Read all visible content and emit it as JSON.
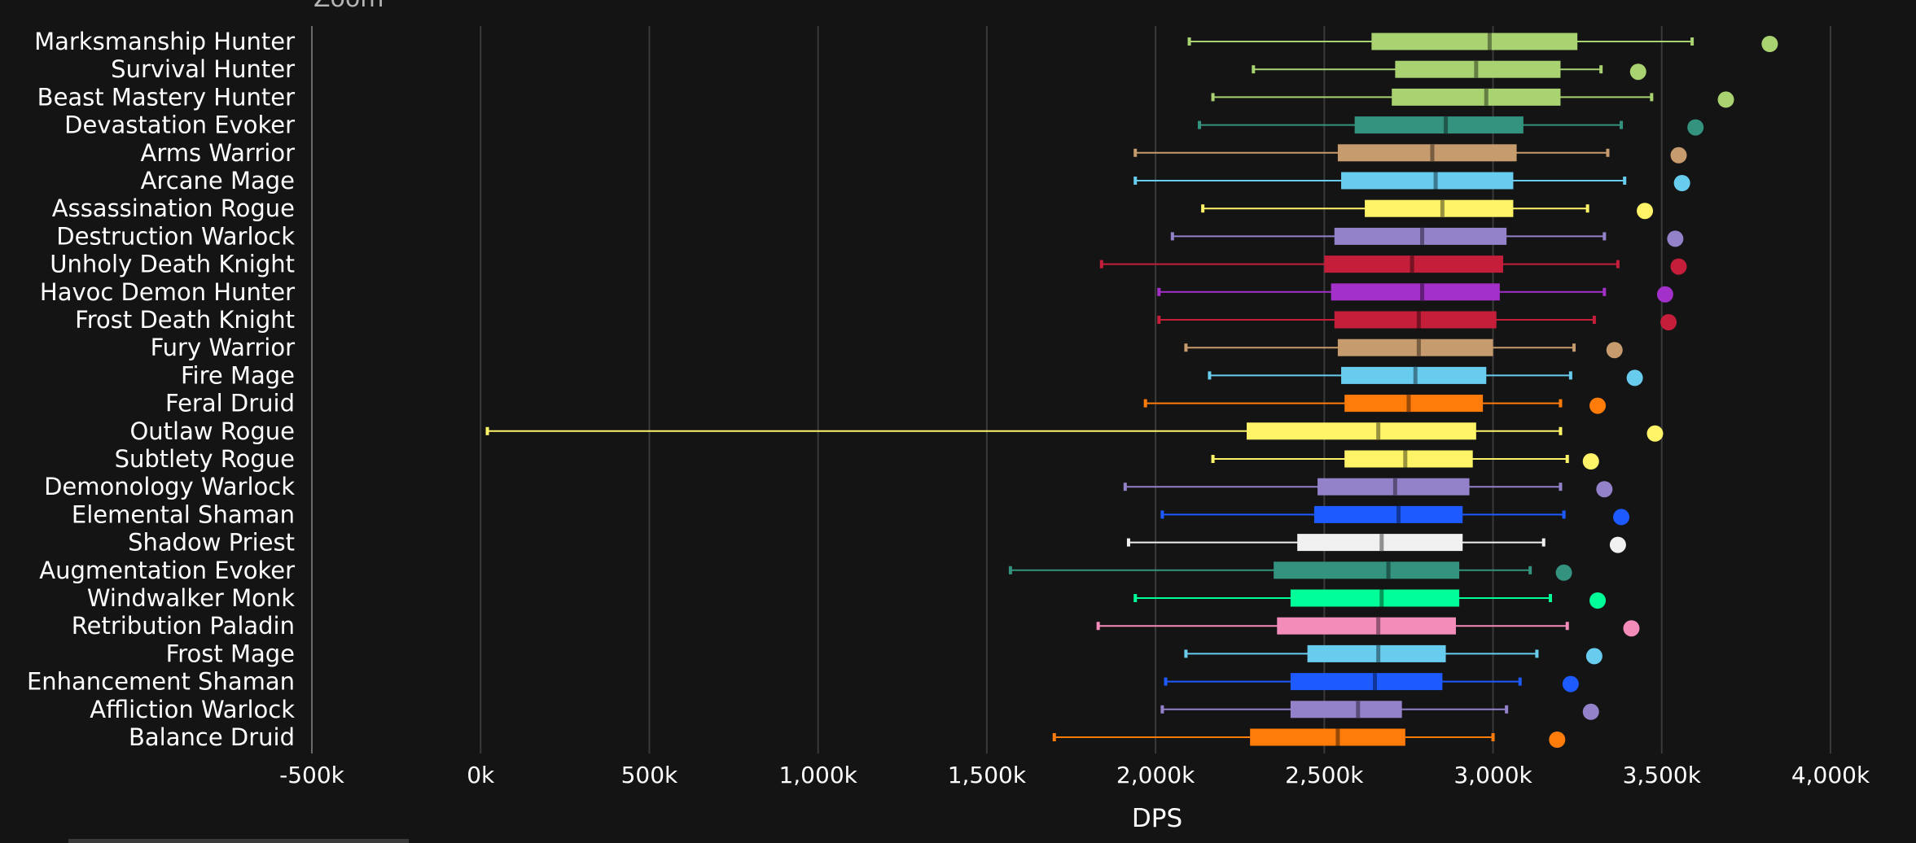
{
  "chart_data": {
    "type": "boxplot",
    "zoom_label": "Zoom",
    "xlabel": "DPS",
    "xlim": [
      -500000,
      4000000
    ],
    "x_ticks": [
      {
        "value": -500000,
        "label": "-500k"
      },
      {
        "value": 0,
        "label": "0k"
      },
      {
        "value": 500000,
        "label": "500k"
      },
      {
        "value": 1000000,
        "label": "1,000k"
      },
      {
        "value": 1500000,
        "label": "1,500k"
      },
      {
        "value": 2000000,
        "label": "2,000k"
      },
      {
        "value": 2500000,
        "label": "2,500k"
      },
      {
        "value": 3000000,
        "label": "3,000k"
      },
      {
        "value": 3500000,
        "label": "3,500k"
      },
      {
        "value": 4000000,
        "label": "4,000k"
      }
    ],
    "grid": true,
    "series": [
      {
        "name": "Marksmanship Hunter",
        "color": "#a9d271",
        "min": 2100000,
        "q1": 2640000,
        "median": 2990000,
        "q3": 3250000,
        "max": 3590000,
        "outlier": 3820000
      },
      {
        "name": "Survival Hunter",
        "color": "#a9d271",
        "min": 2290000,
        "q1": 2710000,
        "median": 2950000,
        "q3": 3200000,
        "max": 3320000,
        "outlier": 3430000
      },
      {
        "name": "Beast Mastery Hunter",
        "color": "#a9d271",
        "min": 2170000,
        "q1": 2700000,
        "median": 2980000,
        "q3": 3200000,
        "max": 3470000,
        "outlier": 3690000
      },
      {
        "name": "Devastation Evoker",
        "color": "#33937f",
        "min": 2130000,
        "q1": 2590000,
        "median": 2860000,
        "q3": 3090000,
        "max": 3380000,
        "outlier": 3600000
      },
      {
        "name": "Arms Warrior",
        "color": "#c69b6d",
        "min": 1940000,
        "q1": 2540000,
        "median": 2820000,
        "q3": 3070000,
        "max": 3340000,
        "outlier": 3550000
      },
      {
        "name": "Arcane Mage",
        "color": "#68ccef",
        "min": 1940000,
        "q1": 2550000,
        "median": 2830000,
        "q3": 3060000,
        "max": 3390000,
        "outlier": 3560000
      },
      {
        "name": "Assassination Rogue",
        "color": "#fff468",
        "min": 2140000,
        "q1": 2620000,
        "median": 2850000,
        "q3": 3060000,
        "max": 3280000,
        "outlier": 3450000
      },
      {
        "name": "Destruction Warlock",
        "color": "#9382c9",
        "min": 2050000,
        "q1": 2530000,
        "median": 2790000,
        "q3": 3040000,
        "max": 3330000,
        "outlier": 3540000
      },
      {
        "name": "Unholy Death Knight",
        "color": "#c41e3b",
        "min": 1840000,
        "q1": 2500000,
        "median": 2760000,
        "q3": 3030000,
        "max": 3370000,
        "outlier": 3550000
      },
      {
        "name": "Havoc Demon Hunter",
        "color": "#a330c9",
        "min": 2010000,
        "q1": 2520000,
        "median": 2790000,
        "q3": 3020000,
        "max": 3330000,
        "outlier": 3510000
      },
      {
        "name": "Frost Death Knight",
        "color": "#c41e3b",
        "min": 2010000,
        "q1": 2530000,
        "median": 2780000,
        "q3": 3010000,
        "max": 3300000,
        "outlier": 3520000
      },
      {
        "name": "Fury Warrior",
        "color": "#c69b6d",
        "min": 2090000,
        "q1": 2540000,
        "median": 2780000,
        "q3": 3000000,
        "max": 3240000,
        "outlier": 3360000
      },
      {
        "name": "Fire Mage",
        "color": "#68ccef",
        "min": 2160000,
        "q1": 2550000,
        "median": 2770000,
        "q3": 2980000,
        "max": 3230000,
        "outlier": 3420000
      },
      {
        "name": "Feral Druid",
        "color": "#ff7c0a",
        "min": 1970000,
        "q1": 2560000,
        "median": 2750000,
        "q3": 2970000,
        "max": 3200000,
        "outlier": 3310000
      },
      {
        "name": "Outlaw Rogue",
        "color": "#fff468",
        "min": 20000,
        "q1": 2270000,
        "median": 2660000,
        "q3": 2950000,
        "max": 3200000,
        "outlier": 3480000
      },
      {
        "name": "Subtlety Rogue",
        "color": "#fff468",
        "min": 2170000,
        "q1": 2560000,
        "median": 2740000,
        "q3": 2940000,
        "max": 3220000,
        "outlier": 3290000
      },
      {
        "name": "Demonology Warlock",
        "color": "#9382c9",
        "min": 1910000,
        "q1": 2480000,
        "median": 2710000,
        "q3": 2930000,
        "max": 3200000,
        "outlier": 3330000
      },
      {
        "name": "Elemental Shaman",
        "color": "#1d5aff",
        "min": 2020000,
        "q1": 2470000,
        "median": 2720000,
        "q3": 2910000,
        "max": 3210000,
        "outlier": 3380000
      },
      {
        "name": "Shadow Priest",
        "color": "#f0f0f0",
        "min": 1920000,
        "q1": 2420000,
        "median": 2670000,
        "q3": 2910000,
        "max": 3150000,
        "outlier": 3370000
      },
      {
        "name": "Augmentation Evoker",
        "color": "#33937f",
        "min": 1570000,
        "q1": 2350000,
        "median": 2690000,
        "q3": 2900000,
        "max": 3110000,
        "outlier": 3210000
      },
      {
        "name": "Windwalker Monk",
        "color": "#00ff98",
        "min": 1940000,
        "q1": 2400000,
        "median": 2670000,
        "q3": 2900000,
        "max": 3170000,
        "outlier": 3310000
      },
      {
        "name": "Retribution Paladin",
        "color": "#f48cba",
        "min": 1830000,
        "q1": 2360000,
        "median": 2660000,
        "q3": 2890000,
        "max": 3220000,
        "outlier": 3410000
      },
      {
        "name": "Frost Mage",
        "color": "#68ccef",
        "min": 2090000,
        "q1": 2450000,
        "median": 2660000,
        "q3": 2860000,
        "max": 3130000,
        "outlier": 3300000
      },
      {
        "name": "Enhancement Shaman",
        "color": "#1d5aff",
        "min": 2030000,
        "q1": 2400000,
        "median": 2650000,
        "q3": 2850000,
        "max": 3080000,
        "outlier": 3230000
      },
      {
        "name": "Affliction Warlock",
        "color": "#9382c9",
        "min": 2020000,
        "q1": 2400000,
        "median": 2600000,
        "q3": 2730000,
        "max": 3040000,
        "outlier": 3290000
      },
      {
        "name": "Balance Druid",
        "color": "#ff7c0a",
        "min": 1700000,
        "q1": 2280000,
        "median": 2540000,
        "q3": 2740000,
        "max": 3000000,
        "outlier": 3190000
      }
    ]
  }
}
